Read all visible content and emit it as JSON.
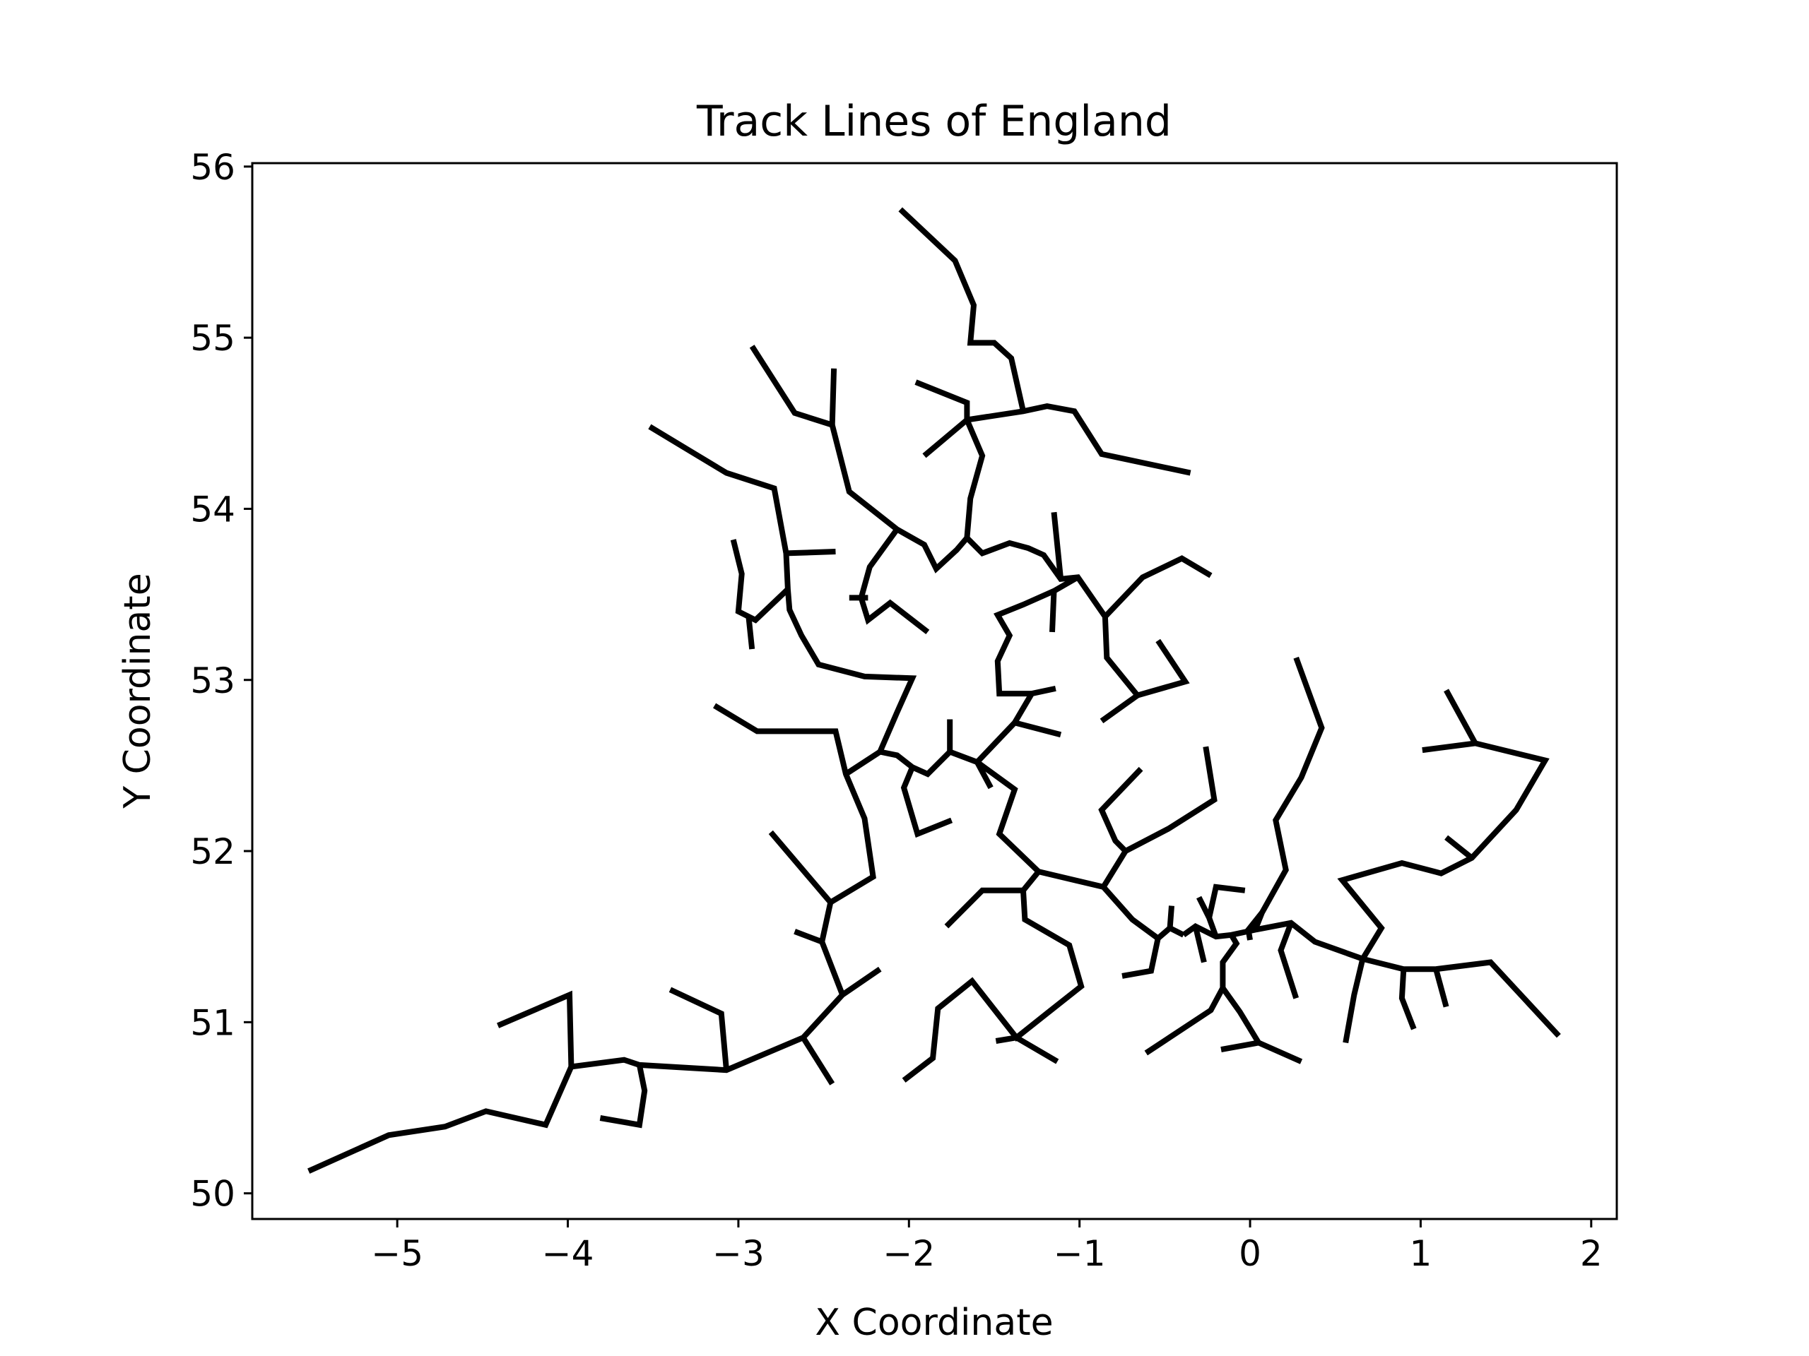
{
  "chart_data": {
    "type": "line",
    "title": "Track Lines of England",
    "xlabel": "X Coordinate",
    "ylabel": "Y Coordinate",
    "xlim": [
      -5.85,
      2.15
    ],
    "ylim": [
      49.85,
      56.02
    ],
    "xticks": [
      -5,
      -4,
      -3,
      -2,
      -1,
      0,
      1,
      2
    ],
    "xtick_labels": [
      "−5",
      "−4",
      "−3",
      "−2",
      "−1",
      "0",
      "1",
      "2"
    ],
    "yticks": [
      50,
      51,
      52,
      53,
      54,
      55,
      56
    ],
    "ytick_labels": [
      "50",
      "51",
      "52",
      "53",
      "54",
      "55",
      "56"
    ],
    "grid": false,
    "legend": "none",
    "line_color": "#000000",
    "segments": [
      [
        [
          -5.52,
          50.13
        ],
        [
          -5.05,
          50.34
        ],
        [
          -4.72,
          50.39
        ],
        [
          -4.48,
          50.48
        ],
        [
          -4.13,
          50.4
        ],
        [
          -3.98,
          50.74
        ],
        [
          -3.67,
          50.78
        ],
        [
          -3.58,
          50.75
        ],
        [
          -3.07,
          50.72
        ],
        [
          -2.62,
          50.91
        ],
        [
          -2.39,
          51.16
        ],
        [
          -2.17,
          51.31
        ]
      ],
      [
        [
          -4.41,
          50.98
        ],
        [
          -3.99,
          51.16
        ],
        [
          -3.98,
          50.74
        ]
      ],
      [
        [
          -3.81,
          50.44
        ],
        [
          -3.58,
          50.4
        ],
        [
          -3.55,
          50.6
        ],
        [
          -3.58,
          50.75
        ]
      ],
      [
        [
          -3.4,
          51.19
        ],
        [
          -3.1,
          51.05
        ],
        [
          -3.07,
          50.72
        ]
      ],
      [
        [
          -2.62,
          50.91
        ],
        [
          -2.45,
          50.64
        ]
      ],
      [
        [
          -2.39,
          51.16
        ],
        [
          -2.51,
          51.47
        ],
        [
          -2.67,
          51.53
        ]
      ],
      [
        [
          -2.51,
          51.47
        ],
        [
          -2.46,
          51.7
        ],
        [
          -2.81,
          52.11
        ]
      ],
      [
        [
          -2.46,
          51.7
        ],
        [
          -2.21,
          51.85
        ],
        [
          -2.26,
          52.19
        ],
        [
          -2.37,
          52.45
        ],
        [
          -2.43,
          52.7
        ],
        [
          -2.89,
          52.7
        ],
        [
          -3.14,
          52.85
        ]
      ],
      [
        [
          -2.37,
          52.45
        ],
        [
          -2.17,
          52.58
        ],
        [
          -2.07,
          52.81
        ],
        [
          -1.98,
          53.01
        ],
        [
          -2.26,
          53.02
        ],
        [
          -2.53,
          53.09
        ],
        [
          -2.63,
          53.26
        ],
        [
          -2.7,
          53.41
        ],
        [
          -2.71,
          53.53
        ],
        [
          -2.72,
          53.74
        ],
        [
          -2.43,
          53.75
        ]
      ],
      [
        [
          -2.72,
          53.74
        ],
        [
          -2.79,
          54.12
        ],
        [
          -3.07,
          54.21
        ],
        [
          -3.52,
          54.48
        ]
      ],
      [
        [
          -2.71,
          53.53
        ],
        [
          -2.9,
          53.35
        ],
        [
          -3.0,
          53.4
        ],
        [
          -2.98,
          53.62
        ],
        [
          -3.03,
          53.82
        ]
      ],
      [
        [
          -2.94,
          53.37
        ],
        [
          -2.92,
          53.18
        ]
      ],
      [
        [
          -2.45,
          54.49
        ],
        [
          -2.44,
          54.82
        ]
      ],
      [
        [
          -2.92,
          54.95
        ],
        [
          -2.67,
          54.56
        ],
        [
          -2.45,
          54.49
        ],
        [
          -2.35,
          54.1
        ],
        [
          -2.07,
          53.88
        ],
        [
          -1.91,
          53.79
        ],
        [
          -1.84,
          53.65
        ],
        [
          -1.72,
          53.76
        ],
        [
          -1.66,
          53.83
        ]
      ],
      [
        [
          -2.07,
          53.88
        ],
        [
          -2.23,
          53.66
        ],
        [
          -2.28,
          53.48
        ],
        [
          -2.24,
          53.35
        ],
        [
          -2.11,
          53.45
        ],
        [
          -1.89,
          53.28
        ]
      ],
      [
        [
          -2.35,
          53.48
        ],
        [
          -2.24,
          53.48
        ]
      ],
      [
        [
          -2.17,
          52.58
        ],
        [
          -2.07,
          52.56
        ],
        [
          -1.98,
          52.49
        ],
        [
          -1.89,
          52.45
        ],
        [
          -1.76,
          52.58
        ],
        [
          -1.6,
          52.52
        ],
        [
          -1.38,
          52.36
        ],
        [
          -1.47,
          52.1
        ],
        [
          -1.24,
          51.88
        ],
        [
          -0.86,
          51.79
        ],
        [
          -0.69,
          51.6
        ],
        [
          -0.54,
          51.49
        ],
        [
          -0.47,
          51.55
        ],
        [
          -0.39,
          51.51
        ]
      ],
      [
        [
          -1.98,
          52.49
        ],
        [
          -2.03,
          52.37
        ],
        [
          -1.95,
          52.1
        ],
        [
          -1.75,
          52.18
        ]
      ],
      [
        [
          -1.76,
          52.58
        ],
        [
          -1.76,
          52.77
        ]
      ],
      [
        [
          -1.6,
          52.52
        ],
        [
          -1.52,
          52.37
        ]
      ],
      [
        [
          -1.6,
          52.52
        ],
        [
          -1.38,
          52.75
        ],
        [
          -1.28,
          52.92
        ],
        [
          -1.14,
          52.95
        ]
      ],
      [
        [
          -1.38,
          52.75
        ],
        [
          -1.11,
          52.68
        ]
      ],
      [
        [
          -1.24,
          51.88
        ],
        [
          -1.33,
          51.77
        ],
        [
          -1.57,
          51.77
        ],
        [
          -1.78,
          51.56
        ]
      ],
      [
        [
          -1.33,
          51.77
        ],
        [
          -1.32,
          51.6
        ],
        [
          -1.06,
          51.45
        ],
        [
          -0.99,
          51.21
        ],
        [
          -1.18,
          51.06
        ],
        [
          -1.37,
          50.91
        ],
        [
          -1.63,
          51.24
        ],
        [
          -1.83,
          51.08
        ],
        [
          -1.86,
          50.79
        ],
        [
          -2.03,
          50.66
        ]
      ],
      [
        [
          -1.37,
          50.91
        ],
        [
          -1.49,
          50.89
        ]
      ],
      [
        [
          -1.37,
          50.91
        ],
        [
          -1.13,
          50.77
        ]
      ],
      [
        [
          -0.86,
          51.79
        ],
        [
          -0.73,
          52.0
        ],
        [
          -0.79,
          52.06
        ],
        [
          -0.87,
          52.24
        ],
        [
          -0.64,
          52.48
        ]
      ],
      [
        [
          -0.73,
          52.0
        ],
        [
          -0.48,
          52.13
        ],
        [
          -0.21,
          52.3
        ],
        [
          -0.26,
          52.61
        ]
      ],
      [
        [
          -0.39,
          51.51
        ],
        [
          -0.32,
          51.56
        ],
        [
          -0.2,
          51.5
        ],
        [
          -0.11,
          51.51
        ],
        [
          0.03,
          51.54
        ],
        [
          0.24,
          51.58
        ],
        [
          0.38,
          51.47
        ],
        [
          0.66,
          51.37
        ],
        [
          0.9,
          51.31
        ],
        [
          1.09,
          51.31
        ],
        [
          1.41,
          51.35
        ],
        [
          1.81,
          50.92
        ]
      ],
      [
        [
          -0.54,
          51.49
        ],
        [
          -0.58,
          51.3
        ],
        [
          -0.75,
          51.27
        ]
      ],
      [
        [
          -0.47,
          51.55
        ],
        [
          -0.46,
          51.68
        ]
      ],
      [
        [
          -0.32,
          51.56
        ],
        [
          -0.27,
          51.35
        ]
      ],
      [
        [
          -0.2,
          51.5
        ],
        [
          -0.24,
          51.61
        ],
        [
          -0.3,
          51.73
        ]
      ],
      [
        [
          -0.24,
          51.61
        ],
        [
          -0.2,
          51.79
        ],
        [
          -0.03,
          51.77
        ]
      ],
      [
        [
          -0.11,
          51.51
        ],
        [
          -0.08,
          51.46
        ],
        [
          -0.16,
          51.35
        ],
        [
          -0.16,
          51.2
        ],
        [
          -0.23,
          51.07
        ],
        [
          -0.61,
          50.82
        ]
      ],
      [
        [
          -0.16,
          51.2
        ],
        [
          -0.06,
          51.06
        ],
        [
          0.05,
          50.88
        ],
        [
          0.3,
          50.77
        ]
      ],
      [
        [
          0.05,
          50.88
        ],
        [
          -0.17,
          50.84
        ]
      ],
      [
        [
          0.03,
          51.54
        ],
        [
          0.07,
          51.64
        ],
        [
          0.21,
          51.89
        ],
        [
          0.15,
          52.18
        ],
        [
          0.3,
          52.43
        ],
        [
          0.42,
          52.72
        ],
        [
          0.27,
          53.13
        ]
      ],
      [
        [
          0.07,
          51.64
        ],
        [
          -0.01,
          51.54
        ],
        [
          0.0,
          51.48
        ]
      ],
      [
        [
          0.24,
          51.58
        ],
        [
          0.18,
          51.42
        ],
        [
          0.27,
          51.14
        ]
      ],
      [
        [
          0.66,
          51.37
        ],
        [
          0.77,
          51.55
        ],
        [
          0.54,
          51.83
        ],
        [
          0.89,
          51.93
        ],
        [
          1.12,
          51.87
        ],
        [
          1.3,
          51.96
        ],
        [
          1.56,
          52.24
        ],
        [
          1.73,
          52.53
        ],
        [
          1.32,
          52.63
        ],
        [
          1.01,
          52.59
        ]
      ],
      [
        [
          1.32,
          52.63
        ],
        [
          1.15,
          52.94
        ]
      ],
      [
        [
          1.3,
          51.96
        ],
        [
          1.15,
          52.08
        ]
      ],
      [
        [
          0.66,
          51.37
        ],
        [
          0.61,
          51.16
        ],
        [
          0.56,
          50.88
        ]
      ],
      [
        [
          0.9,
          51.31
        ],
        [
          0.89,
          51.14
        ],
        [
          0.96,
          50.96
        ]
      ],
      [
        [
          1.09,
          51.31
        ],
        [
          1.15,
          51.09
        ]
      ],
      [
        [
          -1.66,
          53.83
        ],
        [
          -1.57,
          53.74
        ],
        [
          -1.41,
          53.8
        ],
        [
          -1.3,
          53.77
        ],
        [
          -1.21,
          53.73
        ],
        [
          -1.11,
          53.59
        ],
        [
          -1.01,
          53.6
        ],
        [
          -0.85,
          53.37
        ],
        [
          -0.84,
          53.13
        ],
        [
          -0.66,
          52.91
        ],
        [
          -0.38,
          52.99
        ],
        [
          -0.54,
          53.23
        ]
      ],
      [
        [
          -0.66,
          52.91
        ],
        [
          -0.87,
          52.76
        ]
      ],
      [
        [
          -0.85,
          53.37
        ],
        [
          -0.63,
          53.6
        ],
        [
          -0.4,
          53.71
        ],
        [
          -0.23,
          53.61
        ]
      ],
      [
        [
          -1.11,
          53.59
        ],
        [
          -1.15,
          53.98
        ]
      ],
      [
        [
          -1.01,
          53.6
        ],
        [
          -1.15,
          53.52
        ],
        [
          -1.33,
          53.44
        ],
        [
          -1.48,
          53.38
        ],
        [
          -1.41,
          53.26
        ],
        [
          -1.48,
          53.11
        ],
        [
          -1.47,
          52.92
        ],
        [
          -1.28,
          52.92
        ]
      ],
      [
        [
          -1.15,
          53.52
        ],
        [
          -1.16,
          53.28
        ]
      ],
      [
        [
          -1.66,
          53.83
        ],
        [
          -1.64,
          54.06
        ],
        [
          -1.57,
          54.31
        ],
        [
          -1.66,
          54.52
        ],
        [
          -1.66,
          54.62
        ],
        [
          -1.96,
          54.74
        ]
      ],
      [
        [
          -1.66,
          54.52
        ],
        [
          -1.91,
          54.31
        ]
      ],
      [
        [
          -1.66,
          54.52
        ],
        [
          -1.33,
          54.57
        ],
        [
          -1.19,
          54.6
        ],
        [
          -1.03,
          54.57
        ],
        [
          -0.87,
          54.32
        ],
        [
          -0.35,
          54.21
        ]
      ],
      [
        [
          -1.33,
          54.57
        ],
        [
          -1.4,
          54.88
        ],
        [
          -1.5,
          54.97
        ],
        [
          -1.64,
          54.97
        ],
        [
          -1.62,
          55.19
        ],
        [
          -1.73,
          55.45
        ],
        [
          -2.05,
          55.75
        ]
      ]
    ]
  }
}
